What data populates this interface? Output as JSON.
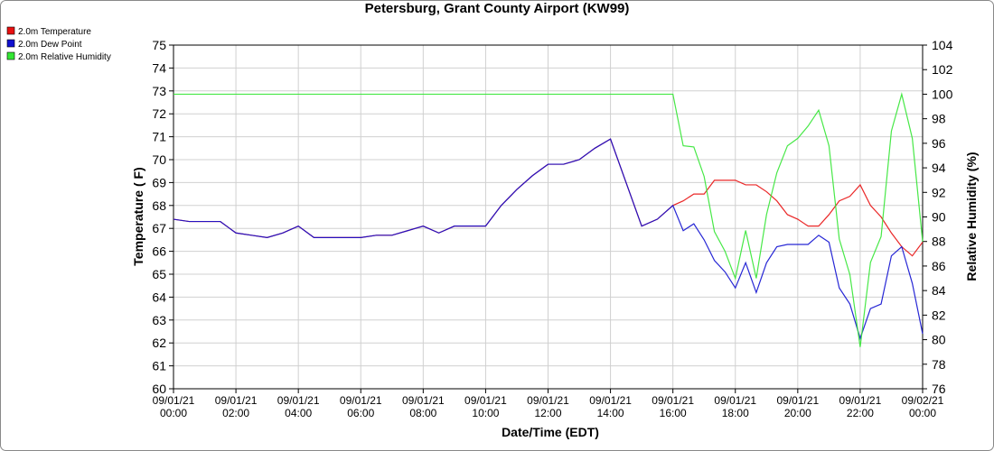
{
  "chart_data": {
    "type": "line",
    "title": "Petersburg, Grant County Airport (KW99)",
    "x_label": "Date/Time (EDT)",
    "y_label": "Temperature ( F)",
    "y2_label": "Relative Humidity (%)",
    "grid": true,
    "legend_position": "top-left",
    "xlim": [
      0,
      24
    ],
    "xticks": [
      {
        "value": 0,
        "label": "09/01/21\n00:00"
      },
      {
        "value": 2,
        "label": "09/01/21\n02:00"
      },
      {
        "value": 4,
        "label": "09/01/21\n04:00"
      },
      {
        "value": 6,
        "label": "09/01/21\n06:00"
      },
      {
        "value": 8,
        "label": "09/01/21\n08:00"
      },
      {
        "value": 10,
        "label": "09/01/21\n10:00"
      },
      {
        "value": 12,
        "label": "09/01/21\n12:00"
      },
      {
        "value": 14,
        "label": "09/01/21\n14:00"
      },
      {
        "value": 16,
        "label": "09/01/21\n16:00"
      },
      {
        "value": 18,
        "label": "09/01/21\n18:00"
      },
      {
        "value": 20,
        "label": "09/01/21\n20:00"
      },
      {
        "value": 22,
        "label": "09/01/21\n22:00"
      },
      {
        "value": 24,
        "label": "09/02/21\n00:00"
      }
    ],
    "ylim": [
      60,
      75
    ],
    "yticks": [
      60,
      61,
      62,
      63,
      64,
      65,
      66,
      67,
      68,
      69,
      70,
      71,
      72,
      73,
      74,
      75
    ],
    "y2lim": [
      76,
      104
    ],
    "y2ticks": [
      76,
      78,
      80,
      82,
      84,
      86,
      88,
      90,
      92,
      94,
      96,
      98,
      100,
      102,
      104
    ],
    "x": [
      0,
      0.5,
      1,
      1.5,
      2,
      2.5,
      3,
      3.5,
      4,
      4.5,
      5,
      5.5,
      6,
      6.5,
      7,
      7.5,
      8,
      8.5,
      9,
      9.5,
      10,
      10.5,
      11,
      11.5,
      12,
      12.5,
      13,
      13.5,
      14,
      14.5,
      15,
      15.5,
      16,
      16.33,
      16.67,
      17,
      17.33,
      17.67,
      18,
      18.33,
      18.67,
      19,
      19.33,
      19.67,
      20,
      20.33,
      20.67,
      21,
      21.33,
      21.67,
      22,
      22.33,
      22.67,
      23,
      23.33,
      23.67,
      24
    ],
    "series": [
      {
        "name": "2.0m Temperature",
        "color": "#e81010",
        "values": [
          67.4,
          67.3,
          67.3,
          67.3,
          66.8,
          66.7,
          66.6,
          66.8,
          67.1,
          66.6,
          66.6,
          66.6,
          66.6,
          66.7,
          66.7,
          66.9,
          67.1,
          66.8,
          67.1,
          67.1,
          67.1,
          68.0,
          68.7,
          69.3,
          69.8,
          69.8,
          70.0,
          70.5,
          70.9,
          69.0,
          67.1,
          67.4,
          68.0,
          68.2,
          68.5,
          68.5,
          69.1,
          69.1,
          69.1,
          68.9,
          68.9,
          68.6,
          68.2,
          67.6,
          67.4,
          67.1,
          67.1,
          67.6,
          68.2,
          68.4,
          68.9,
          68.0,
          67.5,
          66.8,
          66.2,
          65.8,
          66.4
        ]
      },
      {
        "name": "2.0m Dew Point",
        "color": "#1010d0",
        "values": [
          67.4,
          67.3,
          67.3,
          67.3,
          66.8,
          66.7,
          66.6,
          66.8,
          67.1,
          66.6,
          66.6,
          66.6,
          66.6,
          66.7,
          66.7,
          66.9,
          67.1,
          66.8,
          67.1,
          67.1,
          67.1,
          68.0,
          68.7,
          69.3,
          69.8,
          69.8,
          70.0,
          70.5,
          70.9,
          69.0,
          67.1,
          67.4,
          68.0,
          66.9,
          67.2,
          66.5,
          65.6,
          65.1,
          64.4,
          65.5,
          64.2,
          65.5,
          66.2,
          66.3,
          66.3,
          66.3,
          66.7,
          66.4,
          64.4,
          63.7,
          62.2,
          63.5,
          63.7,
          65.8,
          66.2,
          64.6,
          62.4
        ]
      },
      {
        "name": "2.0m Relative Humidity",
        "color": "#33e633",
        "axis": "y2",
        "values": [
          100,
          100,
          100,
          100,
          100,
          100,
          100,
          100,
          100,
          100,
          100,
          100,
          100,
          100,
          100,
          100,
          100,
          100,
          100,
          100,
          100,
          100,
          100,
          100,
          100,
          100,
          100,
          100,
          100,
          100,
          100,
          100,
          100,
          95.8,
          95.7,
          93.3,
          88.8,
          87.2,
          85.0,
          88.9,
          85.0,
          90.2,
          93.6,
          95.8,
          96.4,
          97.4,
          98.7,
          95.8,
          88.2,
          85.3,
          79.4,
          86.3,
          88.4,
          97.0,
          100,
          96.4,
          88
        ]
      }
    ]
  }
}
